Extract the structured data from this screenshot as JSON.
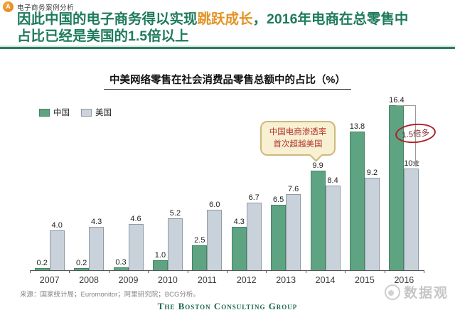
{
  "header": {
    "badge": "A",
    "tagline": "电子商务案例分析",
    "title_part1": "因此中国的电子商务得以实现",
    "title_highlight": "跳跃成长",
    "title_part2": "，2016年电商在总零售中",
    "title_part3": "占比已经是美国的1.5倍以上"
  },
  "chart": {
    "title": "中美网络零售在社会消费品零售总额中的占比（%）",
    "legend": [
      {
        "label": "中国",
        "color": "#5ea482"
      },
      {
        "label": "美国",
        "color": "#c9d2da"
      }
    ]
  },
  "chart_data": {
    "type": "bar",
    "title": "中美网络零售在社会消费品零售总额中的占比（%）",
    "categories": [
      "2007",
      "2008",
      "2009",
      "2010",
      "2011",
      "2012",
      "2013",
      "2014",
      "2015",
      "2016"
    ],
    "series": [
      {
        "id": "china",
        "name": "中国",
        "color": "#5ea482",
        "values": [
          0.2,
          0.2,
          0.3,
          1.0,
          2.5,
          4.3,
          6.5,
          9.9,
          13.8,
          16.4
        ]
      },
      {
        "id": "usa",
        "name": "美国",
        "color": "#c9d2da",
        "values": [
          4.0,
          4.3,
          4.6,
          5.2,
          6.0,
          6.7,
          7.6,
          8.4,
          9.2,
          10.1
        ]
      }
    ],
    "ylabel": "",
    "xlabel": "",
    "ylim": [
      0,
      17
    ],
    "grid": false,
    "legend_position": "top-left",
    "value_labels": true,
    "value_label_decimals": 1
  },
  "annotations": {
    "callout_line1": "中国电商渗透率",
    "callout_line2": "首次超越美国",
    "ratio_label": "1.5倍多"
  },
  "footer": {
    "source": "来源：国家统计局；Euromonitor；阿里研究院；BCG分析。",
    "bcg": "The Boston Consulting Group",
    "watermark": "数据观"
  }
}
